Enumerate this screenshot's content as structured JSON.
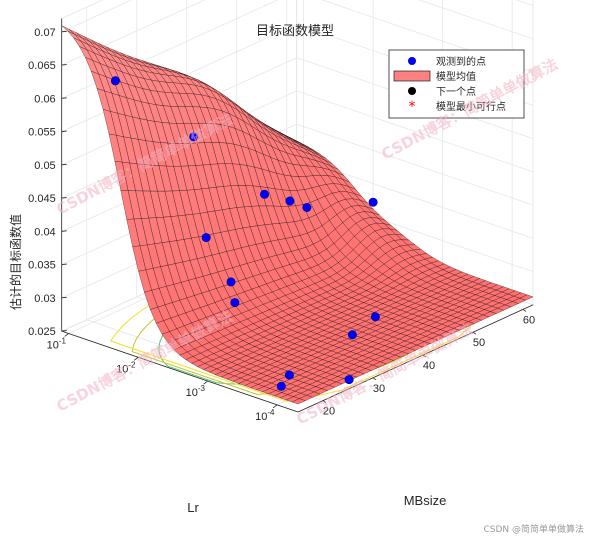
{
  "chart_data": {
    "type": "surface3d",
    "title": "目标函数模型",
    "zlabel": "估计的目标函数值",
    "xlabel": "MBsize",
    "ylabel": "Lr",
    "x_range": [
      15,
      62
    ],
    "y_scale": "log",
    "y_range_exponents": [
      -4.3,
      -0.9
    ],
    "zlim": [
      0.025,
      0.072
    ],
    "z_ticks": [
      "0.025",
      "0.03",
      "0.035",
      "0.04",
      "0.045",
      "0.05",
      "0.055",
      "0.06",
      "0.065",
      "0.07"
    ],
    "x_ticks": [
      "20",
      "30",
      "40",
      "50",
      "60"
    ],
    "y_ticks": [
      {
        "base": "10",
        "exp": "-1"
      },
      {
        "base": "10",
        "exp": "-2"
      },
      {
        "base": "10",
        "exp": "-3"
      },
      {
        "base": "10",
        "exp": "-4"
      }
    ],
    "grid": true,
    "legend_position": "top-right",
    "legend": [
      {
        "label": "观测到的点",
        "marker": "dot",
        "color": "#0000ff"
      },
      {
        "label": "模型均值",
        "marker": "patch",
        "color": "#ff8080"
      },
      {
        "label": "下一个点",
        "marker": "dot",
        "color": "#000000"
      },
      {
        "label": "模型最小可行点",
        "marker": "star",
        "color": "#ff0000"
      }
    ],
    "observed_points": [
      {
        "x": 14.0,
        "y_exp": -0.95,
        "z": 0.076
      },
      {
        "x": 16.0,
        "y_exp": -1.6,
        "z": 0.0648
      },
      {
        "x": 26.0,
        "y_exp": -2.6,
        "z": 0.0316
      },
      {
        "x": 28.0,
        "y_exp": -2.4,
        "z": 0.0333
      },
      {
        "x": 30.0,
        "y_exp": -1.9,
        "z": 0.0375
      },
      {
        "x": 20.0,
        "y_exp": -3.7,
        "z": 0.025
      },
      {
        "x": 23.0,
        "y_exp": -3.6,
        "z": 0.0253
      },
      {
        "x": 28.0,
        "y_exp": -4.1,
        "z": 0.0247
      },
      {
        "x": 37.0,
        "y_exp": -3.5,
        "z": 0.0262
      },
      {
        "x": 43.0,
        "y_exp": -3.4,
        "z": 0.0265
      },
      {
        "x": 40.0,
        "y_exp": -1.0,
        "z": 0.046
      },
      {
        "x": 50.0,
        "y_exp": -1.3,
        "z": 0.035
      },
      {
        "x": 53.0,
        "y_exp": -1.45,
        "z": 0.0335
      },
      {
        "x": 55.0,
        "y_exp": -1.55,
        "z": 0.0322
      },
      {
        "x": 62.0,
        "y_exp": -2.0,
        "z": 0.0322
      }
    ],
    "surface_color": "#ff8080"
  },
  "watermark": {
    "text": "CSDN博客：简简单单做算法"
  },
  "credit": "CSDN @简简单单做算法",
  "colors": {
    "surface": "#ff8080",
    "mesh": "#000000",
    "observed": "#0000ff",
    "axis": "#262626"
  }
}
